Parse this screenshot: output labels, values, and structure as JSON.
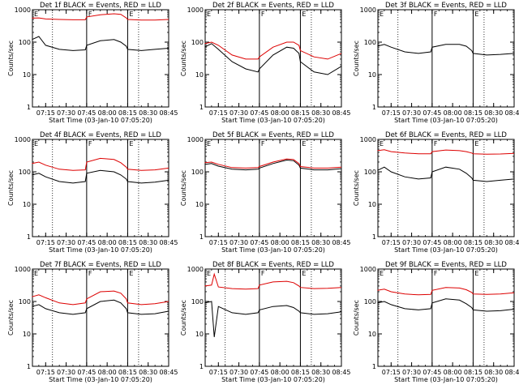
{
  "chart_data": [
    {
      "type": "line",
      "title": "Det 1f BLACK = Events, RED = LLD",
      "xlabel": "Start Time (03-Jan-10 07:05:20)",
      "ylabel": "Counts/sec",
      "yscale": "log",
      "ylim": [
        1,
        1000
      ],
      "y_ticks": [
        "1",
        "10",
        "100",
        "1000"
      ],
      "x_ticks": [
        "07:15",
        "07:30",
        "07:45",
        "08:00",
        "08:15",
        "08:30",
        "08:45"
      ],
      "markers": [
        {
          "label": "E",
          "time": "07:05"
        },
        {
          "label": "F",
          "time": "07:45"
        },
        {
          "label": "E",
          "time": "08:15"
        }
      ],
      "dotted_times": [
        "07:20",
        "08:23"
      ],
      "series": [
        {
          "color": "#000000",
          "x": [
            "07:05",
            "07:10",
            "07:15",
            "07:25",
            "07:35",
            "07:44",
            "07:45",
            "07:55",
            "08:05",
            "08:10",
            "08:14",
            "08:15",
            "08:25",
            "08:35",
            "08:45"
          ],
          "y": [
            120,
            150,
            80,
            60,
            55,
            58,
            80,
            110,
            120,
            100,
            75,
            60,
            55,
            60,
            65
          ]
        },
        {
          "color": "#dd0000",
          "x": [
            "07:05",
            "07:10",
            "07:15",
            "07:25",
            "07:35",
            "07:44",
            "07:45",
            "07:55",
            "08:05",
            "08:10",
            "08:14",
            "08:15",
            "08:25",
            "08:35",
            "08:45"
          ],
          "y": [
            550,
            560,
            520,
            500,
            490,
            490,
            600,
            700,
            750,
            720,
            560,
            500,
            480,
            480,
            500
          ]
        }
      ]
    },
    {
      "type": "line",
      "title": "Det 2f BLACK = Events, RED = LLD",
      "xlabel": "Start Time (03-Jan-10 07:05:20)",
      "ylabel": "Counts/sec",
      "yscale": "log",
      "ylim": [
        1,
        1000
      ],
      "y_ticks": [
        "1",
        "10",
        "100",
        "1000"
      ],
      "x_ticks": [
        "07:15",
        "07:30",
        "07:45",
        "08:00",
        "08:15",
        "08:30",
        "08:45"
      ],
      "markers": [
        {
          "label": "E",
          "time": "07:05"
        },
        {
          "label": "F",
          "time": "07:45"
        },
        {
          "label": "E",
          "time": "08:15"
        }
      ],
      "dotted_times": [
        "07:20",
        "08:23"
      ],
      "series": [
        {
          "color": "#000000",
          "x": [
            "07:05",
            "07:10",
            "07:15",
            "07:25",
            "07:35",
            "07:44",
            "07:45",
            "07:55",
            "08:05",
            "08:10",
            "08:14",
            "08:15",
            "08:25",
            "08:35",
            "08:45"
          ],
          "y": [
            70,
            90,
            60,
            25,
            15,
            12,
            15,
            40,
            70,
            65,
            45,
            25,
            12,
            10,
            18
          ]
        },
        {
          "color": "#dd0000",
          "x": [
            "07:05",
            "07:10",
            "07:15",
            "07:25",
            "07:35",
            "07:44",
            "07:45",
            "07:55",
            "08:05",
            "08:10",
            "08:14",
            "08:15",
            "08:25",
            "08:35",
            "08:45"
          ],
          "y": [
            90,
            100,
            80,
            40,
            30,
            30,
            35,
            70,
            100,
            100,
            80,
            55,
            35,
            30,
            45
          ]
        }
      ]
    },
    {
      "type": "line",
      "title": "Det 3f BLACK = Events, RED = LLD",
      "xlabel": "Start Time (03-Jan-10 07:05:20)",
      "ylabel": "Counts/sec",
      "yscale": "log",
      "ylim": [
        1,
        1000
      ],
      "y_ticks": [
        "1",
        "10",
        "100",
        "1000"
      ],
      "x_ticks": [
        "07:15",
        "07:30",
        "07:45",
        "08:00",
        "08:15",
        "08:30",
        "08:45"
      ],
      "markers": [
        {
          "label": "E",
          "time": "07:05"
        },
        {
          "label": "F",
          "time": "07:45"
        },
        {
          "label": "E",
          "time": "08:15"
        }
      ],
      "dotted_times": [
        "07:20",
        "08:23"
      ],
      "series": [
        {
          "color": "#000000",
          "x": [
            "07:05",
            "07:10",
            "07:15",
            "07:25",
            "07:35",
            "07:44",
            "07:45",
            "07:55",
            "08:05",
            "08:10",
            "08:14",
            "08:15",
            "08:25",
            "08:35",
            "08:45"
          ],
          "y": [
            75,
            85,
            70,
            50,
            45,
            50,
            70,
            85,
            85,
            75,
            55,
            45,
            40,
            42,
            45
          ]
        }
      ]
    },
    {
      "type": "line",
      "title": "Det 4f BLACK = Events, RED = LLD",
      "xlabel": "Start Time (03-Jan-10 07:05:20)",
      "ylabel": "Counts/sec",
      "yscale": "log",
      "ylim": [
        1,
        1000
      ],
      "y_ticks": [
        "1",
        "10",
        "100",
        "1000"
      ],
      "x_ticks": [
        "07:15",
        "07:30",
        "07:45",
        "08:00",
        "08:15",
        "08:30",
        "08:45"
      ],
      "markers": [
        {
          "label": "E",
          "time": "07:05"
        },
        {
          "label": "F",
          "time": "07:45"
        },
        {
          "label": "E",
          "time": "08:15"
        }
      ],
      "dotted_times": [
        "07:20",
        "08:23"
      ],
      "series": [
        {
          "color": "#000000",
          "x": [
            "07:05",
            "07:10",
            "07:15",
            "07:25",
            "07:35",
            "07:44",
            "07:45",
            "07:55",
            "08:05",
            "08:10",
            "08:14",
            "08:15",
            "08:25",
            "08:35",
            "08:45"
          ],
          "y": [
            80,
            90,
            70,
            50,
            45,
            50,
            90,
            110,
            100,
            80,
            60,
            50,
            45,
            48,
            55
          ]
        },
        {
          "color": "#dd0000",
          "x": [
            "07:05",
            "07:10",
            "07:15",
            "07:25",
            "07:35",
            "07:44",
            "07:45",
            "07:55",
            "08:05",
            "08:10",
            "08:14",
            "08:15",
            "08:25",
            "08:35",
            "08:45"
          ],
          "y": [
            180,
            200,
            160,
            120,
            110,
            115,
            200,
            260,
            240,
            190,
            140,
            120,
            110,
            115,
            130
          ]
        }
      ]
    },
    {
      "type": "line",
      "title": "Det 5f BLACK = Events, RED = LLD",
      "xlabel": "Start Time (03-Jan-10 07:05:20)",
      "ylabel": "Counts/sec",
      "yscale": "log",
      "ylim": [
        1,
        1000
      ],
      "y_ticks": [
        "1",
        "10",
        "100",
        "1000"
      ],
      "x_ticks": [
        "07:15",
        "07:30",
        "07:45",
        "08:00",
        "08:15",
        "08:30",
        "08:45"
      ],
      "markers": [
        {
          "label": "E",
          "time": "07:05"
        },
        {
          "label": "F",
          "time": "07:45"
        },
        {
          "label": "E",
          "time": "08:15"
        }
      ],
      "dotted_times": [
        "07:20",
        "08:23"
      ],
      "series": [
        {
          "color": "#000000",
          "x": [
            "07:05",
            "07:10",
            "07:15",
            "07:25",
            "07:35",
            "07:44",
            "07:45",
            "07:55",
            "08:05",
            "08:10",
            "08:14",
            "08:15",
            "08:25",
            "08:35",
            "08:45"
          ],
          "y": [
            170,
            180,
            150,
            120,
            115,
            120,
            130,
            180,
            230,
            220,
            160,
            130,
            115,
            115,
            125
          ]
        },
        {
          "color": "#dd0000",
          "x": [
            "07:05",
            "07:10",
            "07:15",
            "07:25",
            "07:35",
            "07:44",
            "07:45",
            "07:55",
            "08:05",
            "08:10",
            "08:14",
            "08:15",
            "08:25",
            "08:35",
            "08:45"
          ],
          "y": [
            190,
            200,
            170,
            135,
            130,
            135,
            145,
            200,
            250,
            240,
            180,
            145,
            130,
            130,
            140
          ]
        }
      ]
    },
    {
      "type": "line",
      "title": "Det 6f BLACK = Events, RED = LLD",
      "xlabel": "Start Time (03-Jan-10 07:05:20)",
      "ylabel": "Counts/sec",
      "yscale": "log",
      "ylim": [
        1,
        1000
      ],
      "y_ticks": [
        "1",
        "10",
        "100",
        "1000"
      ],
      "x_ticks": [
        "07:15",
        "07:30",
        "07:45",
        "08:00",
        "08:15",
        "08:30",
        "08:45"
      ],
      "markers": [
        {
          "label": "E",
          "time": "07:05"
        },
        {
          "label": "F",
          "time": "07:45"
        },
        {
          "label": "E",
          "time": "08:15"
        }
      ],
      "dotted_times": [
        "07:20",
        "08:23"
      ],
      "series": [
        {
          "color": "#000000",
          "x": [
            "07:05",
            "07:10",
            "07:15",
            "07:25",
            "07:35",
            "07:44",
            "07:45",
            "07:55",
            "08:05",
            "08:10",
            "08:14",
            "08:15",
            "08:25",
            "08:35",
            "08:45"
          ],
          "y": [
            110,
            140,
            100,
            70,
            60,
            65,
            100,
            140,
            120,
            90,
            65,
            55,
            50,
            55,
            60
          ]
        },
        {
          "color": "#dd0000",
          "x": [
            "07:05",
            "07:10",
            "07:15",
            "07:25",
            "07:35",
            "07:44",
            "07:45",
            "07:55",
            "08:05",
            "08:10",
            "08:14",
            "08:15",
            "08:25",
            "08:35",
            "08:45"
          ],
          "y": [
            450,
            480,
            420,
            380,
            360,
            360,
            420,
            470,
            450,
            420,
            380,
            360,
            350,
            355,
            370
          ]
        }
      ]
    },
    {
      "type": "line",
      "title": "Det 7f BLACK = Events, RED = LLD",
      "xlabel": "Start Time (03-Jan-10 07:05:20)",
      "ylabel": "Counts/sec",
      "yscale": "log",
      "ylim": [
        1,
        1000
      ],
      "y_ticks": [
        "1",
        "10",
        "100",
        "1000"
      ],
      "x_ticks": [
        "07:15",
        "07:30",
        "07:45",
        "08:00",
        "08:15",
        "08:30",
        "08:45"
      ],
      "markers": [
        {
          "label": "E",
          "time": "07:05"
        },
        {
          "label": "F",
          "time": "07:45"
        },
        {
          "label": "E",
          "time": "08:15"
        }
      ],
      "dotted_times": [
        "07:20",
        "08:23"
      ],
      "series": [
        {
          "color": "#000000",
          "x": [
            "07:05",
            "07:10",
            "07:15",
            "07:25",
            "07:35",
            "07:44",
            "07:45",
            "07:55",
            "08:05",
            "08:10",
            "08:14",
            "08:15",
            "08:25",
            "08:35",
            "08:45"
          ],
          "y": [
            70,
            80,
            60,
            45,
            40,
            45,
            60,
            100,
            110,
            90,
            60,
            45,
            40,
            42,
            50
          ]
        },
        {
          "color": "#dd0000",
          "x": [
            "07:05",
            "07:10",
            "07:15",
            "07:25",
            "07:35",
            "07:44",
            "07:45",
            "07:55",
            "08:05",
            "08:10",
            "08:14",
            "08:15",
            "08:25",
            "08:35",
            "08:45"
          ],
          "y": [
            140,
            160,
            130,
            90,
            80,
            90,
            120,
            200,
            210,
            180,
            120,
            90,
            80,
            85,
            100
          ]
        }
      ]
    },
    {
      "type": "line",
      "title": "Det 8f BLACK = Events, RED = LLD",
      "xlabel": "Start Time (03-Jan-10 07:05:20)",
      "ylabel": "Counts/sec",
      "yscale": "log",
      "ylim": [
        1,
        1000
      ],
      "y_ticks": [
        "1",
        "10",
        "100",
        "1000"
      ],
      "x_ticks": [
        "07:15",
        "07:30",
        "07:45",
        "08:00",
        "08:15",
        "08:30",
        "08:45"
      ],
      "markers": [
        {
          "label": "E",
          "time": "07:05"
        },
        {
          "label": "F",
          "time": "07:45"
        },
        {
          "label": "E",
          "time": "08:15"
        }
      ],
      "dotted_times": [
        "07:20",
        "08:23"
      ],
      "series": [
        {
          "color": "#000000",
          "x": [
            "07:05",
            "07:10",
            "07:12",
            "07:15",
            "07:25",
            "07:35",
            "07:44",
            "07:45",
            "07:55",
            "08:05",
            "08:10",
            "08:14",
            "08:15",
            "08:25",
            "08:35",
            "08:45"
          ],
          "y": [
            90,
            100,
            8,
            70,
            45,
            40,
            45,
            55,
            70,
            75,
            65,
            50,
            45,
            40,
            42,
            48
          ]
        },
        {
          "color": "#dd0000",
          "x": [
            "07:05",
            "07:10",
            "07:12",
            "07:15",
            "07:25",
            "07:35",
            "07:44",
            "07:45",
            "07:55",
            "08:05",
            "08:10",
            "08:14",
            "08:15",
            "08:25",
            "08:35",
            "08:45"
          ],
          "y": [
            300,
            320,
            700,
            280,
            250,
            240,
            250,
            320,
            400,
            420,
            380,
            300,
            270,
            250,
            255,
            270
          ]
        }
      ]
    },
    {
      "type": "line",
      "title": "Det 9f BLACK = Events, RED = LLD",
      "xlabel": "Start Time (03-Jan-10 07:05:20)",
      "ylabel": "Counts/sec",
      "yscale": "log",
      "ylim": [
        1,
        1000
      ],
      "y_ticks": [
        "1",
        "10",
        "100",
        "1000"
      ],
      "x_ticks": [
        "07:15",
        "07:30",
        "07:45",
        "08:00",
        "08:15",
        "08:30",
        "08:45"
      ],
      "markers": [
        {
          "label": "E",
          "time": "07:05"
        },
        {
          "label": "F",
          "time": "07:45"
        },
        {
          "label": "E",
          "time": "08:15"
        }
      ],
      "dotted_times": [
        "07:20",
        "08:23"
      ],
      "series": [
        {
          "color": "#000000",
          "x": [
            "07:05",
            "07:10",
            "07:15",
            "07:25",
            "07:35",
            "07:44",
            "07:45",
            "07:55",
            "08:05",
            "08:10",
            "08:14",
            "08:15",
            "08:25",
            "08:35",
            "08:45"
          ],
          "y": [
            90,
            100,
            80,
            60,
            55,
            60,
            90,
            120,
            110,
            85,
            65,
            55,
            50,
            52,
            58
          ]
        },
        {
          "color": "#dd0000",
          "x": [
            "07:05",
            "07:10",
            "07:15",
            "07:25",
            "07:35",
            "07:44",
            "07:45",
            "07:55",
            "08:05",
            "08:10",
            "08:14",
            "08:15",
            "08:25",
            "08:35",
            "08:45"
          ],
          "y": [
            220,
            240,
            200,
            170,
            160,
            165,
            220,
            270,
            260,
            230,
            190,
            170,
            165,
            170,
            185
          ]
        }
      ]
    }
  ]
}
